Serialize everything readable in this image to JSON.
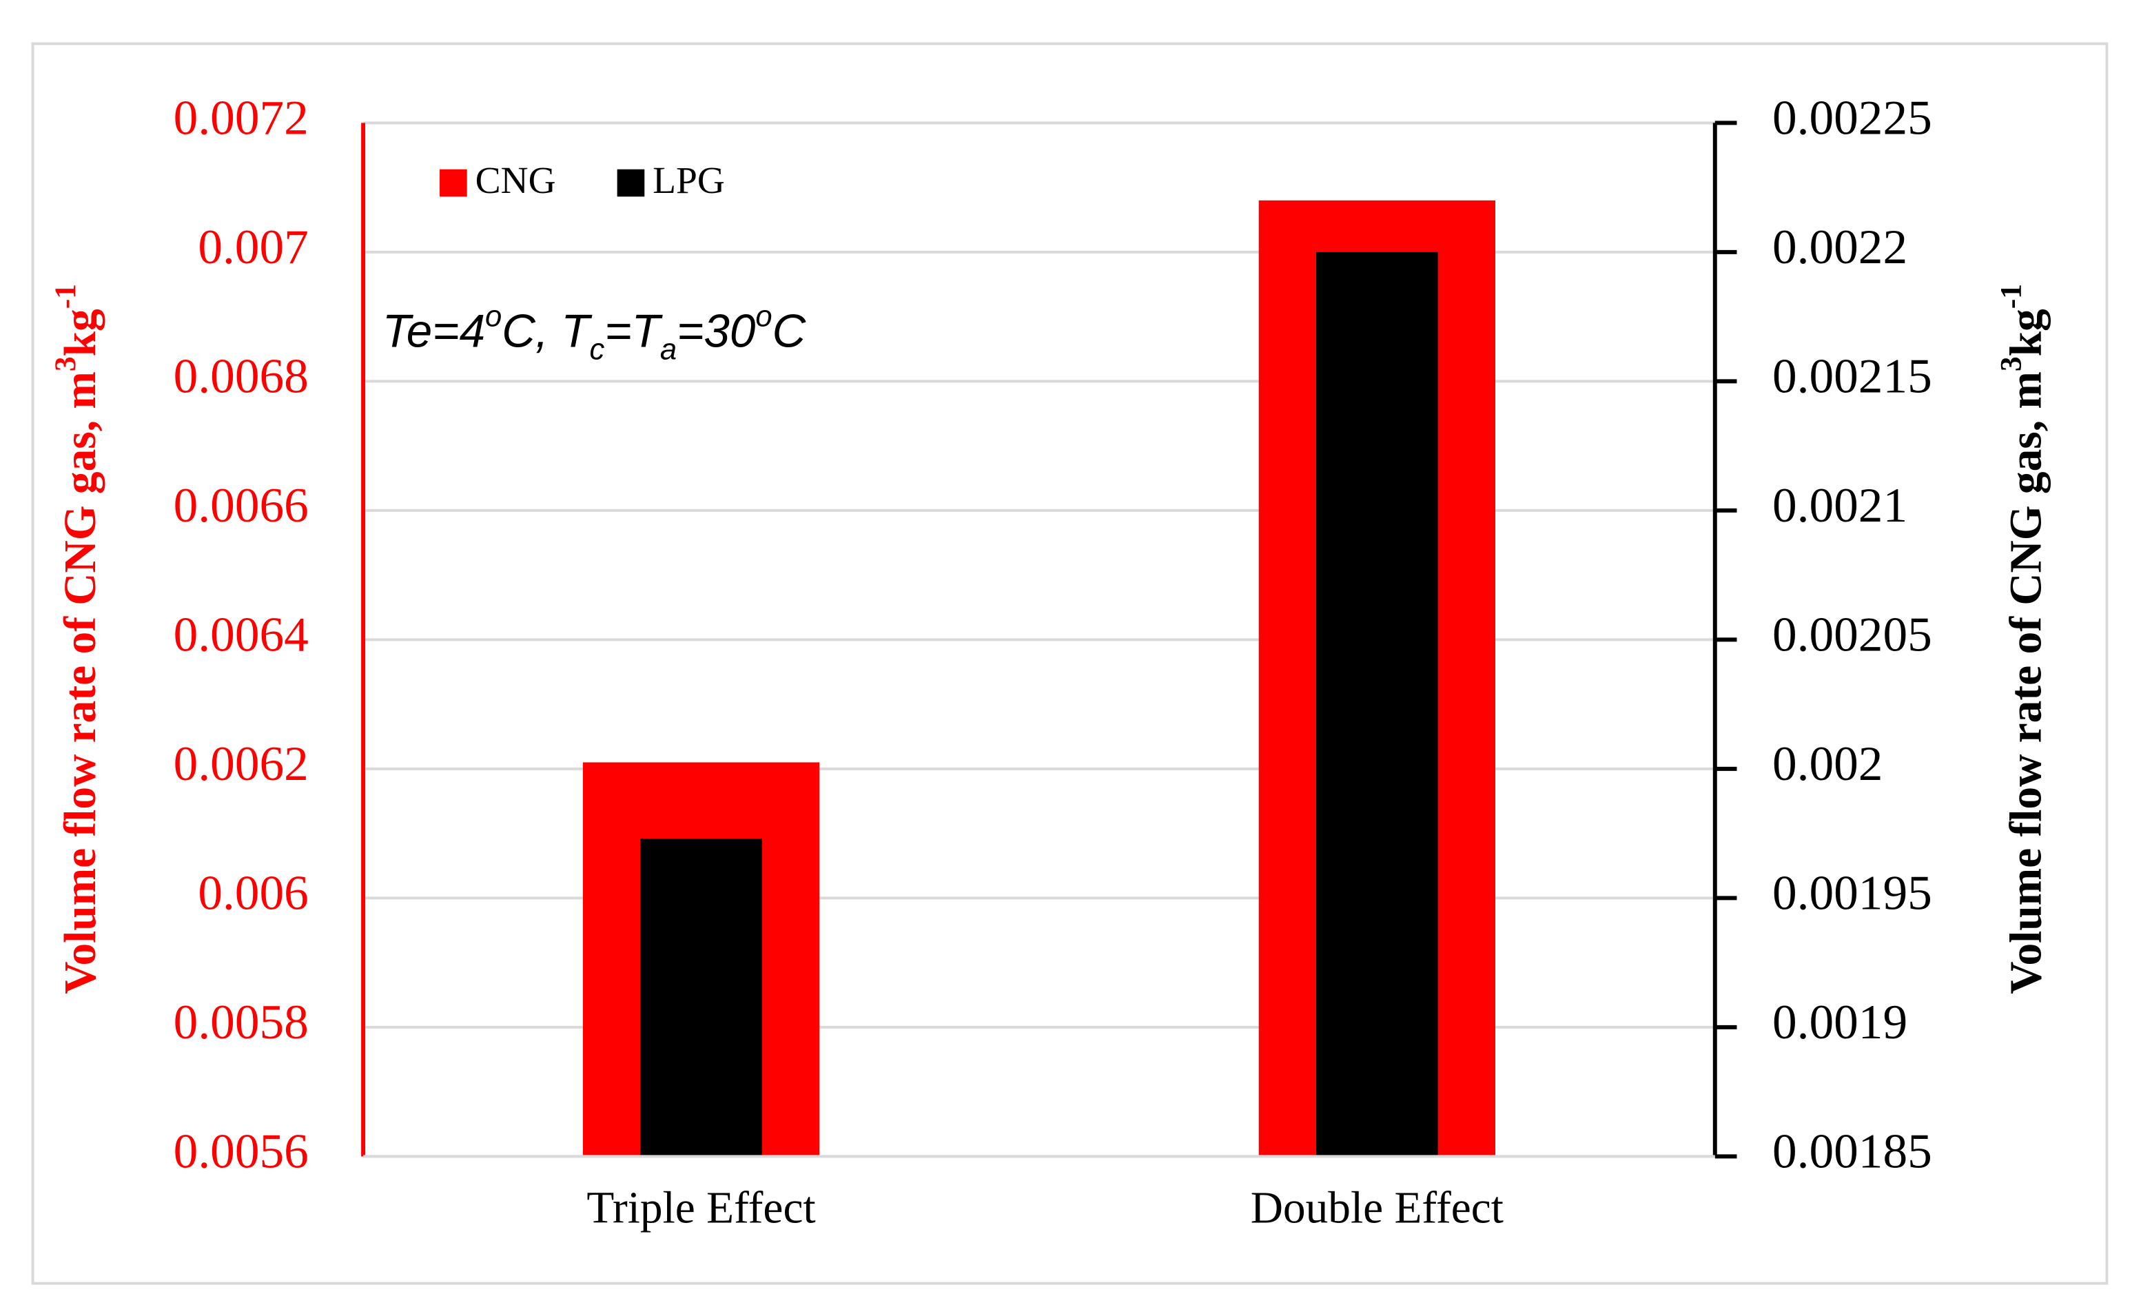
{
  "chart_data": {
    "type": "bar",
    "categories": [
      "Triple Effect",
      "Double Effect"
    ],
    "series": [
      {
        "name": "CNG",
        "color": "#ff0000",
        "values": [
          0.00621,
          0.00708
        ]
      },
      {
        "name": "LPG",
        "color": "#000000",
        "values": [
          0.001973,
          0.0022
        ],
        "axis": "y2"
      }
    ],
    "ylim": [
      0.0056,
      0.0072
    ],
    "yticks": [
      0.0056,
      0.0058,
      0.006,
      0.0062,
      0.0064,
      0.0066,
      0.0068,
      0.007,
      0.0072
    ],
    "y2lim": [
      0.00185,
      0.00225
    ],
    "y2ticks": [
      0.00185,
      0.0019,
      0.00195,
      0.002,
      0.00205,
      0.0021,
      0.00215,
      0.0022,
      0.00225
    ],
    "ylabel": [
      "Volume flow rate of CNG gas, m",
      "3",
      "kg",
      "-1"
    ],
    "y2label": [
      "Volume flow rate of CNG gas, m",
      "3",
      "kg",
      "-1"
    ],
    "annotation": [
      "Te=4",
      "o",
      "C, T",
      "c",
      "=T",
      "a",
      "=30",
      "o",
      "C"
    ],
    "grid": true,
    "legend": "upper-left"
  }
}
